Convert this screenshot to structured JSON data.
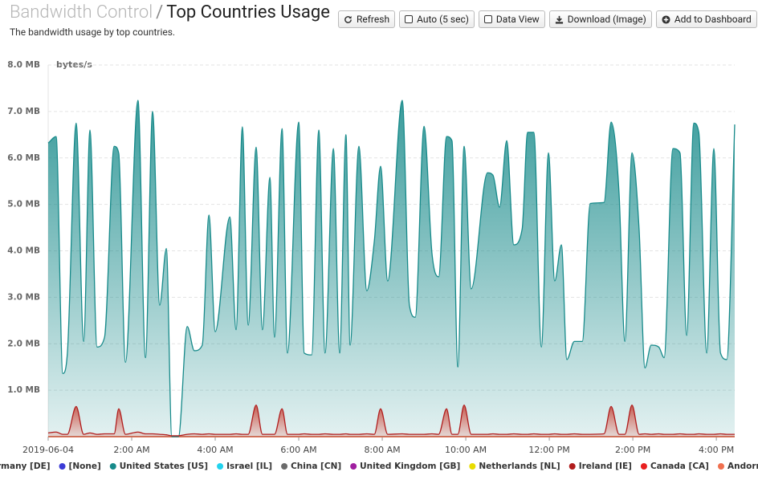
{
  "header": {
    "title_prefix": "Bandwidth Control",
    "separator": "/",
    "title": "Top Countries Usage",
    "subtitle": "The bandwidth usage by top countries."
  },
  "toolbar": [
    "Refresh",
    "Auto (5 sec)",
    "Data View",
    "Download (Image)",
    "Add to Dashboard"
  ],
  "chart_data": {
    "type": "area",
    "y_label": "bytes/s",
    "x": [
      0,
      0.19,
      0.35,
      0.46,
      0.67,
      0.85,
      1.0,
      1.17,
      1.35,
      1.58,
      1.69,
      1.85,
      2.15,
      2.33,
      2.5,
      2.67,
      2.83,
      2.96,
      3.12,
      3.33,
      3.5,
      3.69,
      3.85,
      4.0,
      4.35,
      4.5,
      4.65,
      4.79,
      4.98,
      5.13,
      5.31,
      5.42,
      5.6,
      5.73,
      6.0,
      6.13,
      6.31,
      6.48,
      6.63,
      6.83,
      6.98,
      7.13,
      7.23,
      7.44,
      7.63,
      7.81,
      7.96,
      8.13,
      8.48,
      8.65,
      8.79,
      9.0,
      9.19,
      9.35,
      9.54,
      9.67,
      9.81,
      9.96,
      10.13,
      10.52,
      10.65,
      10.81,
      10.98,
      11.15,
      11.35,
      11.48,
      11.63,
      11.81,
      11.98,
      12.13,
      12.29,
      12.42,
      12.6,
      12.79,
      12.98,
      13.31,
      13.48,
      13.67,
      13.81,
      13.98,
      14.15,
      14.29,
      14.44,
      14.62,
      14.75,
      14.96,
      15.13,
      15.29,
      15.46,
      15.58,
      15.77,
      15.94,
      16.1,
      16.25,
      16.44
    ],
    "xlim": [
      0,
      16.44
    ],
    "xticks": [
      {
        "value": 0,
        "label": "2019-06-04"
      },
      {
        "value": 2,
        "label": "2:00 AM"
      },
      {
        "value": 4,
        "label": "4:00 AM"
      },
      {
        "value": 6,
        "label": "6:00 AM"
      },
      {
        "value": 8,
        "label": "8:00 AM"
      },
      {
        "value": 10,
        "label": "10:00 AM"
      },
      {
        "value": 12,
        "label": "12:00 PM"
      },
      {
        "value": 14,
        "label": "2:00 PM"
      },
      {
        "value": 16,
        "label": "4:00 PM"
      }
    ],
    "ylim": [
      0,
      8
    ],
    "yticks": [
      {
        "value": 1,
        "label": "1.0 MB"
      },
      {
        "value": 2,
        "label": "2.0 MB"
      },
      {
        "value": 3,
        "label": "3.0 MB"
      },
      {
        "value": 4,
        "label": "4.0 MB"
      },
      {
        "value": 5,
        "label": "5.0 MB"
      },
      {
        "value": 6,
        "label": "6.0 MB"
      },
      {
        "value": 7,
        "label": "7.0 MB"
      },
      {
        "value": 8,
        "label": "8.0 MB"
      }
    ],
    "grid": true,
    "legend": "bottom",
    "series": [
      {
        "name": "Germany [DE]",
        "color": "#21a121",
        "values": [
          0,
          0,
          0,
          0,
          0,
          0,
          0,
          0,
          0,
          0,
          0,
          0,
          0,
          0,
          0,
          0,
          0,
          0,
          0,
          0,
          0,
          0,
          0,
          0,
          0,
          0,
          0,
          0,
          0,
          0,
          0,
          0,
          0,
          0,
          0,
          0,
          0,
          0,
          0,
          0,
          0,
          0,
          0,
          0,
          0,
          0,
          0,
          0,
          0,
          0,
          0,
          0,
          0,
          0,
          0,
          0,
          0,
          0,
          0,
          0,
          0,
          0,
          0,
          0,
          0,
          0,
          0,
          0,
          0,
          0,
          0,
          0,
          0,
          0,
          0,
          0,
          0,
          0,
          0,
          0,
          0,
          0,
          0,
          0,
          0,
          0,
          0,
          0,
          0,
          0,
          0,
          0,
          0,
          0,
          0
        ]
      },
      {
        "name": "[None]",
        "color": "#3b3bd6",
        "values": [
          0,
          0,
          0,
          0,
          0,
          0,
          0,
          0,
          0,
          0,
          0,
          0,
          0,
          0,
          0,
          0,
          0,
          0,
          0,
          0,
          0,
          0,
          0,
          0,
          0,
          0,
          0,
          0,
          0,
          0,
          0,
          0,
          0,
          0,
          0,
          0,
          0,
          0,
          0,
          0,
          0,
          0,
          0,
          0,
          0,
          0,
          0,
          0,
          0,
          0,
          0,
          0,
          0,
          0,
          0,
          0,
          0,
          0,
          0,
          0,
          0,
          0,
          0,
          0,
          0,
          0,
          0,
          0,
          0,
          0,
          0,
          0,
          0,
          0,
          0,
          0,
          0,
          0,
          0,
          0,
          0,
          0,
          0,
          0,
          0,
          0,
          0,
          0,
          0,
          0,
          0,
          0,
          0,
          0,
          0
        ]
      },
      {
        "name": "United States [US]",
        "color": "#178a8a",
        "values": [
          6.32,
          6.46,
          1.36,
          1.8,
          6.75,
          2.05,
          6.6,
          1.93,
          2.14,
          6.25,
          6.1,
          1.6,
          7.24,
          1.7,
          7.0,
          2.83,
          4.05,
          0,
          0,
          2.37,
          1.85,
          1.97,
          4.77,
          2.26,
          4.73,
          2.3,
          6.67,
          2.4,
          6.23,
          2.3,
          5.58,
          2.14,
          6.63,
          1.8,
          6.77,
          1.8,
          1.76,
          6.6,
          1.8,
          6.2,
          1.8,
          6.5,
          1.97,
          6.25,
          3.14,
          4.21,
          5.82,
          3.35,
          7.24,
          2.83,
          2.57,
          6.68,
          3.95,
          3.44,
          6.46,
          6.37,
          1.5,
          6.25,
          3.18,
          5.68,
          5.63,
          4.94,
          6.37,
          4.13,
          4.47,
          6.55,
          6.55,
          1.93,
          6.11,
          3.35,
          4.13,
          1.66,
          2.05,
          2.05,
          5.02,
          5.04,
          6.77,
          5.25,
          2.05,
          6.11,
          4.47,
          1.48,
          1.97,
          1.93,
          1.7,
          6.2,
          6.11,
          2.18,
          6.75,
          6.55,
          1.8,
          6.2,
          1.8,
          1.66,
          6.72
        ]
      },
      {
        "name": "Israel [IL]",
        "color": "#22d3ee",
        "values": [
          0,
          0,
          0,
          0,
          0,
          0,
          0,
          0,
          0,
          0,
          0,
          0,
          0,
          0,
          0,
          0,
          0,
          0,
          0,
          0,
          0,
          0,
          0,
          0,
          0,
          0,
          0,
          0,
          0,
          0,
          0,
          0,
          0,
          0,
          0,
          0,
          0,
          0,
          0,
          0,
          0,
          0,
          0,
          0,
          0,
          0,
          0,
          0,
          0,
          0,
          0,
          0,
          0,
          0,
          0,
          0,
          0,
          0,
          0,
          0,
          0,
          0,
          0,
          0,
          0,
          0,
          0,
          0,
          0,
          0,
          0,
          0,
          0,
          0,
          0,
          0,
          0,
          0,
          0,
          0,
          0,
          0,
          0,
          0,
          0,
          0,
          0,
          0,
          0,
          0,
          0,
          0,
          0,
          0,
          0
        ]
      },
      {
        "name": "China [CN]",
        "color": "#6b6b6b",
        "values": [
          0,
          0,
          0,
          0,
          0,
          0,
          0,
          0,
          0,
          0,
          0,
          0,
          0,
          0,
          0,
          0,
          0,
          0,
          0,
          0,
          0,
          0,
          0,
          0,
          0,
          0,
          0,
          0,
          0,
          0,
          0,
          0,
          0,
          0,
          0,
          0,
          0,
          0,
          0,
          0,
          0,
          0,
          0,
          0,
          0,
          0,
          0,
          0,
          0,
          0,
          0,
          0,
          0,
          0,
          0,
          0,
          0,
          0,
          0,
          0,
          0,
          0,
          0,
          0,
          0,
          0,
          0,
          0,
          0,
          0,
          0,
          0,
          0,
          0,
          0,
          0,
          0,
          0,
          0,
          0,
          0,
          0,
          0,
          0,
          0,
          0,
          0,
          0,
          0,
          0,
          0,
          0,
          0,
          0,
          0
        ]
      },
      {
        "name": "United Kingdom [GB]",
        "color": "#a01fa0",
        "values": [
          0,
          0,
          0,
          0,
          0,
          0,
          0,
          0,
          0,
          0,
          0,
          0,
          0,
          0,
          0,
          0,
          0,
          0,
          0,
          0,
          0,
          0,
          0,
          0,
          0,
          0,
          0,
          0,
          0,
          0,
          0,
          0,
          0,
          0,
          0,
          0,
          0,
          0,
          0,
          0,
          0,
          0,
          0,
          0,
          0,
          0,
          0,
          0,
          0,
          0,
          0,
          0,
          0,
          0,
          0,
          0,
          0,
          0,
          0,
          0,
          0,
          0,
          0,
          0,
          0,
          0,
          0,
          0,
          0,
          0,
          0,
          0,
          0,
          0,
          0,
          0,
          0,
          0,
          0,
          0,
          0,
          0,
          0,
          0,
          0,
          0,
          0,
          0,
          0,
          0,
          0,
          0,
          0,
          0,
          0
        ]
      },
      {
        "name": "Netherlands [NL]",
        "color": "#e8dc00",
        "values": [
          0,
          0,
          0,
          0,
          0,
          0,
          0,
          0,
          0,
          0,
          0,
          0,
          0,
          0,
          0,
          0,
          0,
          0,
          0,
          0,
          0,
          0,
          0,
          0,
          0,
          0,
          0,
          0,
          0,
          0,
          0,
          0,
          0,
          0,
          0,
          0,
          0,
          0,
          0,
          0,
          0,
          0,
          0,
          0,
          0,
          0,
          0,
          0,
          0,
          0,
          0,
          0,
          0,
          0,
          0,
          0,
          0,
          0,
          0,
          0,
          0,
          0,
          0,
          0,
          0,
          0,
          0,
          0,
          0,
          0,
          0,
          0,
          0,
          0,
          0,
          0,
          0,
          0,
          0,
          0,
          0,
          0,
          0,
          0,
          0,
          0,
          0,
          0,
          0,
          0,
          0,
          0,
          0,
          0,
          0
        ]
      },
      {
        "name": "Ireland [IE]",
        "color": "#b01c1c",
        "values": [
          0.08,
          0.1,
          0.05,
          0.05,
          0.65,
          0.05,
          0.08,
          0.05,
          0.06,
          0.06,
          0.6,
          0.05,
          0.1,
          0.06,
          0.06,
          0.05,
          0.04,
          0.02,
          0.02,
          0.05,
          0.06,
          0.05,
          0.06,
          0.05,
          0.05,
          0.06,
          0.05,
          0.05,
          0.68,
          0.05,
          0.05,
          0.05,
          0.6,
          0.05,
          0.05,
          0.06,
          0.05,
          0.05,
          0.06,
          0.05,
          0.05,
          0.06,
          0.05,
          0.05,
          0.06,
          0.05,
          0.6,
          0.05,
          0.06,
          0.05,
          0.05,
          0.05,
          0.06,
          0.05,
          0.6,
          0.05,
          0.05,
          0.68,
          0.05,
          0.05,
          0.06,
          0.05,
          0.05,
          0.06,
          0.05,
          0.05,
          0.06,
          0.05,
          0.05,
          0.06,
          0.05,
          0.05,
          0.06,
          0.05,
          0.05,
          0.06,
          0.65,
          0.05,
          0.05,
          0.68,
          0.05,
          0.06,
          0.05,
          0.06,
          0.05,
          0.05,
          0.06,
          0.05,
          0.05,
          0.06,
          0.05,
          0.05,
          0.06,
          0.05,
          0.05
        ]
      },
      {
        "name": "Canada [CA]",
        "color": "#e82020",
        "values": [
          0,
          0,
          0,
          0,
          0,
          0,
          0,
          0,
          0,
          0,
          0,
          0,
          0,
          0,
          0,
          0,
          0,
          0,
          0,
          0,
          0,
          0,
          0,
          0,
          0,
          0,
          0,
          0,
          0,
          0,
          0,
          0,
          0,
          0,
          0,
          0,
          0,
          0,
          0,
          0,
          0,
          0,
          0,
          0,
          0,
          0,
          0,
          0,
          0,
          0,
          0,
          0,
          0,
          0,
          0,
          0,
          0,
          0,
          0,
          0,
          0,
          0,
          0,
          0,
          0,
          0,
          0,
          0,
          0,
          0,
          0,
          0,
          0,
          0,
          0,
          0,
          0,
          0,
          0,
          0,
          0,
          0,
          0,
          0,
          0,
          0,
          0,
          0,
          0,
          0,
          0,
          0,
          0,
          0,
          0
        ]
      },
      {
        "name": "Andorra [AD]",
        "color": "#f0704f",
        "values": [
          0,
          0,
          0,
          0,
          0,
          0,
          0,
          0,
          0,
          0,
          0,
          0,
          0,
          0,
          0,
          0,
          0,
          0,
          0,
          0,
          0,
          0,
          0,
          0,
          0,
          0,
          0,
          0,
          0,
          0,
          0,
          0,
          0,
          0,
          0,
          0,
          0,
          0,
          0,
          0,
          0,
          0,
          0,
          0,
          0,
          0,
          0,
          0,
          0,
          0,
          0,
          0,
          0,
          0,
          0,
          0,
          0,
          0,
          0,
          0,
          0,
          0,
          0,
          0,
          0,
          0,
          0,
          0,
          0,
          0,
          0,
          0,
          0,
          0,
          0,
          0,
          0,
          0,
          0,
          0,
          0,
          0,
          0,
          0,
          0,
          0,
          0,
          0,
          0,
          0,
          0,
          0,
          0,
          0,
          0
        ]
      }
    ]
  }
}
